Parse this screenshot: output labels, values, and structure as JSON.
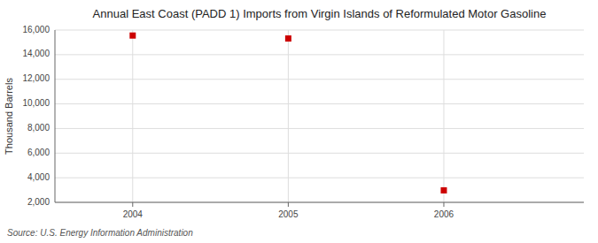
{
  "chart_data": {
    "type": "scatter",
    "title": "Annual East Coast (PADD 1) Imports from Virgin Islands of Reformulated Motor Gasoline",
    "ylabel": "Thousand Barrels",
    "source": "Source: U.S. Energy Information Administration",
    "x": [
      2004,
      2005,
      2006
    ],
    "values": [
      15554,
      15313,
      2976
    ],
    "color": "#cc0000",
    "marker": "square",
    "xlim": [
      2003.5,
      2006.9
    ],
    "ylim": [
      2000,
      16000
    ],
    "xticks": [
      2004,
      2005,
      2006
    ],
    "yticks": [
      {
        "value": 2000,
        "label": "2,000"
      },
      {
        "value": 4000,
        "label": "4,000"
      },
      {
        "value": 6000,
        "label": "6,000"
      },
      {
        "value": 8000,
        "label": "8,000"
      },
      {
        "value": 10000,
        "label": "10,000"
      },
      {
        "value": 12000,
        "label": "12,000"
      },
      {
        "value": 14000,
        "label": "14,000"
      },
      {
        "value": 16000,
        "label": "16,000"
      }
    ],
    "grid": true
  }
}
